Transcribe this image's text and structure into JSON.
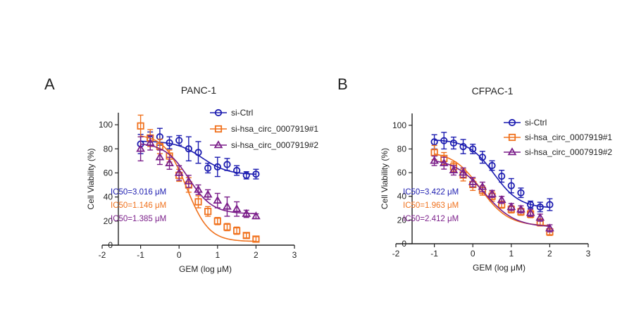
{
  "chart_data": [
    {
      "type": "scatter",
      "panel_label": "A",
      "title": "PANC-1",
      "xlabel": "GEM (log μM)",
      "ylabel": "Cell Viability (%)",
      "xlim": [
        -2,
        3
      ],
      "ylim": [
        0,
        110
      ],
      "xticks": [
        -2,
        -1,
        0,
        1,
        2,
        3
      ],
      "yticks": [
        0,
        20,
        40,
        60,
        80,
        100
      ],
      "legend_position": "top-right",
      "series": [
        {
          "name": "si-Ctrl",
          "color": "#1c1cb0",
          "marker": "circle",
          "x": [
            -1,
            -0.75,
            -0.5,
            -0.25,
            0,
            0.25,
            0.5,
            0.75,
            1,
            1.25,
            1.5,
            1.75,
            2
          ],
          "y": [
            84,
            88,
            90,
            85,
            87,
            80,
            77,
            64,
            65,
            67,
            62,
            58,
            59
          ],
          "err": [
            8,
            6,
            7,
            5,
            4,
            10,
            9,
            4,
            8,
            5,
            4,
            3,
            4
          ],
          "curve": {
            "bottom": 58.5,
            "top": 86.5,
            "log_ic50": 0.6,
            "hill": 1.3
          }
        },
        {
          "name": "si-hsa_circ_0007919#1",
          "color": "#f0721e",
          "marker": "square",
          "x": [
            -1,
            -0.75,
            -0.5,
            -0.25,
            0,
            0.25,
            0.5,
            0.75,
            1,
            1.25,
            1.5,
            1.75,
            2
          ],
          "y": [
            99,
            89,
            82,
            74,
            58,
            50,
            36,
            28,
            20,
            15,
            12,
            8,
            5
          ],
          "err": [
            9,
            7,
            6,
            5,
            5,
            6,
            5,
            4,
            3,
            3,
            3,
            2,
            2
          ],
          "curve": {
            "bottom": 3,
            "top": 92,
            "log_ic50": 0.2,
            "hill": 1.5
          }
        },
        {
          "name": "si-hsa_circ_0007919#2",
          "color": "#7b1f8a",
          "marker": "triangle",
          "x": [
            -1,
            -0.75,
            -0.5,
            -0.25,
            0,
            0.25,
            0.5,
            0.75,
            1,
            1.25,
            1.5,
            1.75,
            2
          ],
          "y": [
            80,
            85,
            73,
            68,
            60,
            53,
            46,
            42,
            37,
            32,
            30,
            26,
            24
          ],
          "err": [
            10,
            6,
            6,
            5,
            6,
            5,
            4,
            4,
            6,
            8,
            6,
            3,
            2
          ],
          "curve": {
            "bottom": 26,
            "top": 85,
            "log_ic50": 0.25,
            "hill": 1.4
          }
        }
      ],
      "annotations": [
        {
          "text": "IC50=3.016 μM",
          "color": "#1c1cb0"
        },
        {
          "text": "IC50=1.146 μM",
          "color": "#f0721e"
        },
        {
          "text": "IC50=1.385 μM",
          "color": "#7b1f8a"
        }
      ]
    },
    {
      "type": "scatter",
      "panel_label": "B",
      "title": "CFPAC-1",
      "xlabel": "GEM (log μM)",
      "ylabel": "Cell Viability (%)",
      "xlim": [
        -2,
        3
      ],
      "ylim": [
        0,
        110
      ],
      "xticks": [
        -2,
        -1,
        0,
        1,
        2,
        3
      ],
      "yticks": [
        0,
        20,
        40,
        60,
        80,
        100
      ],
      "legend_position": "top-right",
      "series": [
        {
          "name": "si-Ctrl",
          "color": "#1c1cb0",
          "marker": "circle",
          "x": [
            -1,
            -0.75,
            -0.5,
            -0.25,
            0,
            0.25,
            0.5,
            0.75,
            1,
            1.25,
            1.5,
            1.75,
            2
          ],
          "y": [
            86,
            87,
            85,
            82,
            80,
            73,
            66,
            57,
            49,
            43,
            33,
            31,
            33
          ],
          "err": [
            6,
            7,
            5,
            6,
            4,
            5,
            4,
            5,
            6,
            4,
            3,
            4,
            5
          ],
          "curve": {
            "bottom": 30,
            "top": 88,
            "log_ic50": 0.55,
            "hill": 1.3
          }
        },
        {
          "name": "si-hsa_circ_0007919#1",
          "color": "#f0721e",
          "marker": "square",
          "x": [
            -1,
            -0.75,
            -0.5,
            -0.25,
            0,
            0.25,
            0.5,
            0.75,
            1,
            1.25,
            1.5,
            1.75,
            2
          ],
          "y": [
            77,
            72,
            65,
            58,
            50,
            45,
            40,
            33,
            29,
            27,
            25,
            18,
            10
          ],
          "err": [
            6,
            5,
            4,
            5,
            5,
            4,
            4,
            3,
            3,
            3,
            3,
            3,
            3
          ],
          "curve": {
            "bottom": 15,
            "top": 78,
            "log_ic50": 0.2,
            "hill": 1.2
          }
        },
        {
          "name": "si-hsa_circ_0007919#2",
          "color": "#7b1f8a",
          "marker": "triangle",
          "x": [
            -1,
            -0.75,
            -0.5,
            -0.25,
            0,
            0.25,
            0.5,
            0.75,
            1,
            1.25,
            1.5,
            1.75,
            2
          ],
          "y": [
            70,
            68,
            62,
            60,
            52,
            48,
            42,
            37,
            31,
            29,
            26,
            22,
            13
          ],
          "err": [
            4,
            5,
            4,
            4,
            4,
            4,
            3,
            3,
            3,
            3,
            3,
            3,
            3
          ],
          "curve": {
            "bottom": 14,
            "top": 72,
            "log_ic50": 0.3,
            "hill": 1.1
          }
        }
      ],
      "annotations": [
        {
          "text": "IC50=3.422 μM",
          "color": "#1c1cb0"
        },
        {
          "text": "IC50=1.963 μM",
          "color": "#f0721e"
        },
        {
          "text": "IC50=2.412 μM",
          "color": "#7b1f8a"
        }
      ]
    }
  ]
}
